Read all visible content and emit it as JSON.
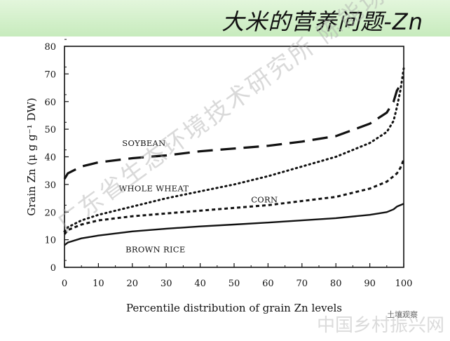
{
  "slide": {
    "title": "大米的营养问题-Zn",
    "watermark": "广东省生态环境技术研究所 陈能场",
    "corner_watermark": "中国乡村振兴网",
    "corner_badge": "土壤观察"
  },
  "chart_data": {
    "type": "line",
    "title": "",
    "xlabel": "Percentile distribution of grain Zn levels",
    "ylabel": "Grain Zn (μ g g⁻¹ DW)",
    "xlim": [
      0,
      100
    ],
    "ylim": [
      0,
      80
    ],
    "xticks": [
      0,
      10,
      20,
      30,
      40,
      50,
      60,
      70,
      80,
      90,
      100
    ],
    "yticks": [
      0,
      10,
      20,
      30,
      40,
      50,
      60,
      70,
      80
    ],
    "grid": false,
    "series": [
      {
        "name": "SOYBEAN",
        "style": "long-dash",
        "x": [
          0,
          1,
          5,
          10,
          20,
          30,
          40,
          50,
          60,
          70,
          80,
          90,
          95,
          97,
          98,
          99,
          100
        ],
        "y": [
          32,
          34,
          36.5,
          38,
          39.5,
          40.5,
          42,
          43,
          44,
          45.5,
          47.5,
          52,
          56,
          60,
          64,
          66,
          66
        ]
      },
      {
        "name": "WHOLE WHEAT",
        "style": "dotted",
        "x": [
          0,
          1,
          5,
          10,
          20,
          30,
          40,
          50,
          60,
          70,
          80,
          90,
          95,
          97,
          98,
          99,
          100
        ],
        "y": [
          13,
          14.5,
          17,
          19,
          22,
          25,
          27.5,
          30,
          33,
          36.5,
          40,
          45,
          49,
          53,
          58,
          64,
          72
        ]
      },
      {
        "name": "CORN",
        "style": "short-dash",
        "x": [
          0,
          1,
          5,
          10,
          20,
          30,
          40,
          50,
          60,
          70,
          80,
          90,
          95,
          97,
          98,
          99,
          100
        ],
        "y": [
          12,
          13.5,
          15.5,
          17,
          18.5,
          19.5,
          20.5,
          21.5,
          22.5,
          24,
          25.5,
          28.5,
          31,
          33,
          34,
          36,
          39
        ]
      },
      {
        "name": "BROWN RICE",
        "style": "solid",
        "x": [
          0,
          1,
          5,
          10,
          20,
          30,
          40,
          50,
          60,
          70,
          80,
          90,
          95,
          97,
          98,
          99,
          100
        ],
        "y": [
          8,
          9,
          10.5,
          11.5,
          13,
          14,
          14.8,
          15.5,
          16.2,
          17,
          17.8,
          19,
          20,
          21,
          22,
          22.5,
          23
        ]
      }
    ],
    "labels": [
      {
        "text": "SOYBEAN",
        "x": 17,
        "y": 44
      },
      {
        "text": "WHOLE WHEAT",
        "x": 16,
        "y": 27.5
      },
      {
        "text": "CORN",
        "x": 55,
        "y": 23.5
      },
      {
        "text": "BROWN RICE",
        "x": 18,
        "y": 5.5
      }
    ]
  }
}
